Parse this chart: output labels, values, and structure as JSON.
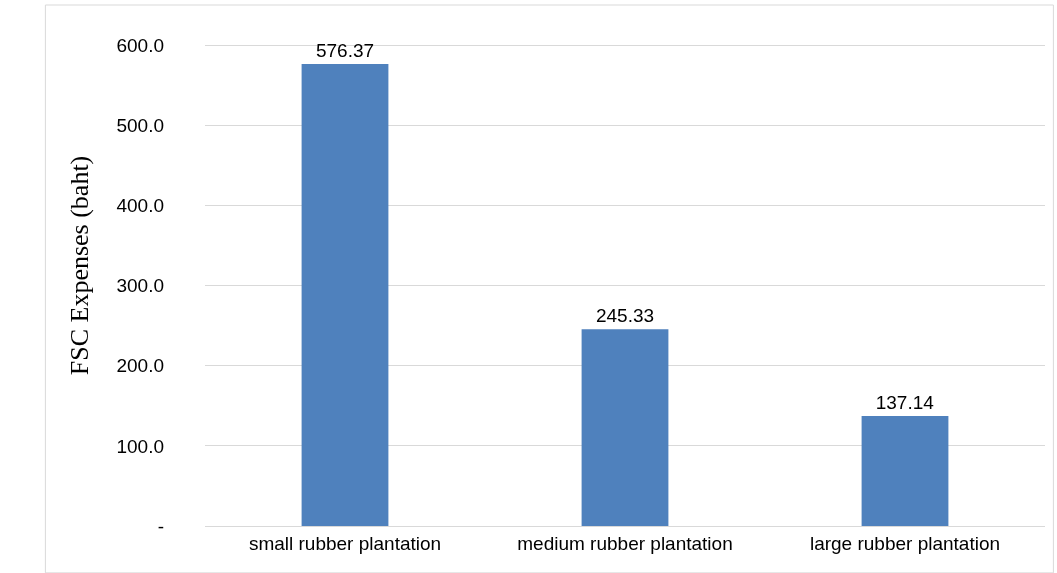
{
  "chart_data": {
    "type": "bar",
    "ylabel": "FSC Expenses (baht)",
    "categories": [
      "small rubber plantation",
      "medium rubber plantation",
      "large rubber plantation"
    ],
    "values": [
      576.37,
      245.33,
      137.14
    ],
    "color": "#4f81bd",
    "ylim": [
      0,
      650
    ],
    "yticks": [
      {
        "value": 0,
        "label": "-"
      },
      {
        "value": 100,
        "label": "100.0"
      },
      {
        "value": 200,
        "label": "200.0"
      },
      {
        "value": 300,
        "label": "300.0"
      },
      {
        "value": 400,
        "label": "400.0"
      },
      {
        "value": 500,
        "label": "500.0"
      },
      {
        "value": 600,
        "label": "600.0"
      }
    ],
    "grid": "y",
    "data_labels": true
  }
}
